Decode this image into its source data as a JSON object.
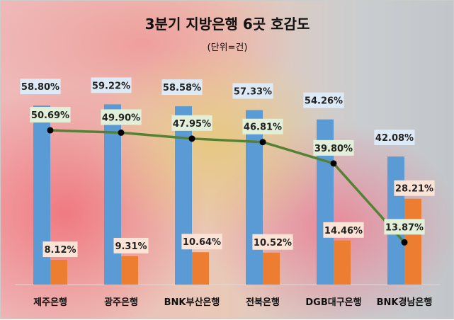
{
  "chart_data": {
    "type": "bar",
    "title": "3분기 지방은행 6곳 호감도",
    "subtitle": "(단위=건)",
    "categories": [
      "제주은행",
      "광주은행",
      "BNK부산은행",
      "전북은행",
      "DGB대구은행",
      "BNK경남은행"
    ],
    "series": [
      {
        "name": "series-blue",
        "kind": "bar",
        "color": "#5b9bd5",
        "label_bg": "#dde9f5",
        "values": [
          58.8,
          59.22,
          58.58,
          57.33,
          54.26,
          42.08
        ],
        "labels": [
          "58.80%",
          "59.22%",
          "58.58%",
          "57.33%",
          "54.26%",
          "42.08%"
        ]
      },
      {
        "name": "series-orange",
        "kind": "bar",
        "color": "#ed7d31",
        "label_bg": "#fbe3d6",
        "values": [
          8.12,
          9.31,
          10.64,
          10.52,
          14.46,
          28.21
        ],
        "labels": [
          "8.12%",
          "9.31%",
          "10.64%",
          "10.52%",
          "14.46%",
          "28.21%"
        ]
      },
      {
        "name": "series-line",
        "kind": "line",
        "color": "#548235",
        "label_bg": "#e2efd9",
        "values": [
          50.69,
          49.9,
          47.95,
          46.81,
          39.8,
          13.87
        ],
        "labels": [
          "50.69%",
          "49.90%",
          "47.95%",
          "46.81%",
          "39.80%",
          "13.87%"
        ]
      }
    ],
    "ylim": [
      0,
      70
    ],
    "grid": false
  }
}
